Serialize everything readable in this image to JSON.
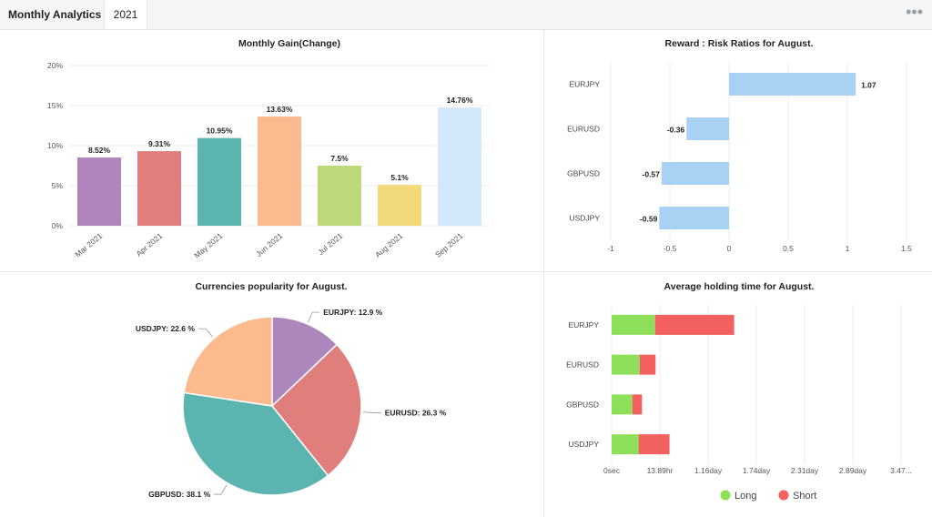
{
  "header": {
    "app_title": "Monthly Analytics",
    "year_tab": "2021",
    "menu_icon": "more-dots-icon"
  },
  "colors": {
    "long": "#8ee05a",
    "short": "#f2605f",
    "ratio_bar": "#a8d1f3"
  },
  "chart_data": [
    {
      "type": "bar",
      "title": "Monthly Gain(Change)",
      "categories": [
        "Mar 2021",
        "Apr 2021",
        "May 2021",
        "Jun 2021",
        "Jul 2021",
        "Aug 2021",
        "Sep 2021"
      ],
      "values": [
        8.52,
        9.31,
        10.95,
        13.63,
        7.5,
        5.1,
        14.76
      ],
      "value_labels": [
        "8.52%",
        "9.31%",
        "10.95%",
        "13.63%",
        "7.5%",
        "5.1%",
        "14.76%"
      ],
      "colors": [
        "#b084bd",
        "#e07e7c",
        "#5cb4b1",
        "#fcbb8e",
        "#bcd879",
        "#f2d97a",
        "#d3e8fb"
      ],
      "yticks": [
        "0%",
        "5%",
        "10%",
        "15%",
        "20%"
      ],
      "ylim": [
        0,
        20
      ],
      "grid": true
    },
    {
      "type": "bar",
      "title": "Reward : Risk Ratios for August.",
      "orientation": "horizontal",
      "categories": [
        "EURJPY",
        "EURUSD",
        "GBPUSD",
        "USDJPY"
      ],
      "values": [
        1.07,
        -0.36,
        -0.57,
        -0.59
      ],
      "value_labels": [
        "1.07",
        "-0.36",
        "-0.57",
        "-0.59"
      ],
      "xticks": [
        "-1",
        "-0.5",
        "0",
        "0.5",
        "1",
        "1.5"
      ],
      "xlim": [
        -1,
        1.5
      ],
      "grid": true
    },
    {
      "type": "pie",
      "title": "Currencies popularity for August.",
      "slices": [
        {
          "label": "EURJPY: 12.9 %",
          "value": 12.9,
          "color": "#ad86bb"
        },
        {
          "label": "EURUSD: 26.3 %",
          "value": 26.3,
          "color": "#e07e7c"
        },
        {
          "label": "GBPUSD: 38.1 %",
          "value": 38.1,
          "color": "#5cb4b1"
        },
        {
          "label": "USDJPY: 22.6 %",
          "value": 22.6,
          "color": "#fcbb8e"
        }
      ]
    },
    {
      "type": "bar",
      "title": "Average holding time for August.",
      "orientation": "horizontal",
      "stacked": true,
      "categories": [
        "EURJPY",
        "EURUSD",
        "GBPUSD",
        "USDJPY"
      ],
      "xticks": [
        "0sec",
        "13.89hr",
        "1.16day",
        "1.74day",
        "2.31day",
        "2.89day",
        "3.47..."
      ],
      "series": [
        {
          "name": "Long",
          "values": [
            0.9,
            0.58,
            0.43,
            0.56
          ]
        },
        {
          "name": "Short",
          "values": [
            1.64,
            0.33,
            0.2,
            0.64
          ]
        }
      ],
      "legend": "bottom",
      "grid": true
    }
  ]
}
